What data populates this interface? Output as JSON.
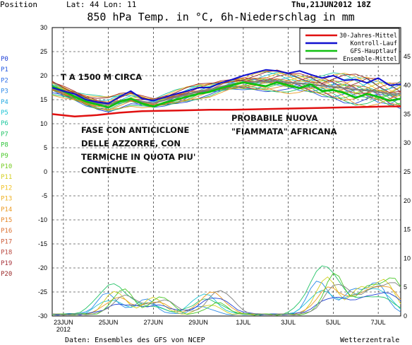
{
  "header": {
    "position_label": "Position",
    "lat_lon": "Lat: 44 Lon: 11",
    "run": "Thu,21JUN2012 18Z",
    "title": "850 hPa Temp. in °C, 6h-Niederschlag in mm"
  },
  "footer": {
    "source": "Daten: Ensembles des GFS von NCEP",
    "brand": "Wetterzentrale"
  },
  "members": [
    "P0",
    "P1",
    "P2",
    "P3",
    "P4",
    "P5",
    "P6",
    "P7",
    "P8",
    "P9",
    "P10",
    "P11",
    "P12",
    "P13",
    "P14",
    "P15",
    "P16",
    "P17",
    "P18",
    "P19",
    "P20"
  ],
  "member_colors": [
    "#1e3fd6",
    "#2458e0",
    "#2d6ee8",
    "#2e8be8",
    "#23a9e0",
    "#1fc4d4",
    "#1ec79e",
    "#25c468",
    "#2fc43a",
    "#4ac82a",
    "#77cc22",
    "#d4cf1f",
    "#f0c020",
    "#eeb020",
    "#eb9a22",
    "#e58526",
    "#dc7030",
    "#cc5a38",
    "#b8443c",
    "#a63038",
    "#982424"
  ],
  "annotations": {
    "t1500": "T A 1500 M CIRCA",
    "anticyclone": [
      "FASE CON ANTICICLONE",
      "DELLE AZZORRE, CON",
      "TERMICHE IN QUOTA PIU'",
      "CONTENUTE"
    ],
    "heat": [
      "PROBABILE NUOVA",
      "\"FIAMMATA\" AFRICANA"
    ]
  },
  "colors": {
    "climate": "#e01010",
    "control": "#1010d0",
    "main": "#10c010",
    "mean": "#808080"
  },
  "chart_data": {
    "type": "line",
    "title": "850 hPa Temp. in °C, 6h-Niederschlag in mm",
    "x_labels": [
      "23JUN",
      "25JUN",
      "27JUN",
      "29JUN",
      "1JUL",
      "3JUL",
      "5JUL",
      "7JUL"
    ],
    "x_sublabel": "2012",
    "x_range_days": [
      22.5,
      38.0
    ],
    "y_left_range": [
      -30,
      30
    ],
    "y_left_ticks": [
      30,
      25,
      20,
      15,
      10,
      5,
      0,
      -5,
      -10,
      -15,
      -20,
      -25,
      -30
    ],
    "y_right_label_ticks": [
      45,
      40,
      35,
      30,
      25,
      20,
      15,
      10,
      5,
      0
    ],
    "legend": {
      "position": "top-right",
      "entries": [
        {
          "name": "30-Jahres-Mittel",
          "color": "#e01010"
        },
        {
          "name": "Kontroll-Lauf",
          "color": "#1010d0"
        },
        {
          "name": "GFS-Hauptlauf",
          "color": "#10c010"
        },
        {
          "name": "Ensemble-Mittel",
          "color": "#808080"
        }
      ]
    },
    "grid": "dashed",
    "series": [
      {
        "name": "30-Jahres-Mittel",
        "day": [
          22.5,
          23.5,
          24.5,
          25.5,
          26.5,
          27.5,
          28.5,
          29.5,
          30.5,
          31.5,
          32.5,
          33.5,
          34.5,
          35.5,
          36.5,
          37.5,
          38.0
        ],
        "temp": [
          12.0,
          11.5,
          11.8,
          12.3,
          12.6,
          12.7,
          12.8,
          12.9,
          12.9,
          13.0,
          13.1,
          13.2,
          13.3,
          13.4,
          13.5,
          13.6,
          13.6
        ]
      },
      {
        "name": "Kontroll-Lauf",
        "day": [
          22.5,
          23.0,
          23.5,
          24.0,
          24.5,
          25.0,
          25.5,
          26.0,
          26.5,
          27.0,
          27.5,
          28.0,
          28.5,
          29.0,
          29.5,
          30.0,
          30.5,
          31.0,
          31.5,
          32.0,
          32.5,
          33.0,
          33.5,
          34.0,
          34.5,
          35.0,
          35.5,
          36.0,
          36.5,
          37.0,
          37.5,
          38.0
        ],
        "temp": [
          17.5,
          16.8,
          16.2,
          15.0,
          14.5,
          14.2,
          15.6,
          16.8,
          15.2,
          14.8,
          15.5,
          16.2,
          16.8,
          17.5,
          17.5,
          18.5,
          19.2,
          20.0,
          20.6,
          21.2,
          21.0,
          20.5,
          21.0,
          20.2,
          19.5,
          20.0,
          19.0,
          19.2,
          18.5,
          19.5,
          18.0,
          18.2
        ]
      },
      {
        "name": "GFS-Hauptlauf",
        "day": [
          22.5,
          23.0,
          23.5,
          24.0,
          24.5,
          25.0,
          25.5,
          26.0,
          26.5,
          27.0,
          27.5,
          28.0,
          28.5,
          29.0,
          29.5,
          30.0,
          30.5,
          31.0,
          31.5,
          32.0,
          32.5,
          33.0,
          33.5,
          34.0,
          34.5,
          35.0,
          35.5,
          36.0,
          36.5,
          37.0,
          37.5,
          38.0
        ],
        "temp": [
          17.8,
          16.8,
          15.6,
          14.6,
          14.0,
          13.4,
          14.6,
          15.2,
          14.2,
          13.6,
          14.4,
          15.0,
          15.6,
          16.2,
          16.6,
          17.4,
          18.0,
          18.6,
          18.2,
          17.8,
          18.6,
          18.0,
          17.4,
          18.2,
          16.8,
          17.0,
          16.4,
          15.4,
          16.2,
          15.6,
          14.8,
          15.2
        ]
      },
      {
        "name": "Ensemble-Mittel",
        "day": [
          22.5,
          23.0,
          23.5,
          24.0,
          24.5,
          25.0,
          25.5,
          26.0,
          26.5,
          27.0,
          27.5,
          28.0,
          28.5,
          29.0,
          29.5,
          30.0,
          30.5,
          31.0,
          31.5,
          32.0,
          32.5,
          33.0,
          33.5,
          34.0,
          34.5,
          35.0,
          35.5,
          36.0,
          36.5,
          37.0,
          37.5,
          38.0
        ],
        "temp": [
          17.5,
          16.6,
          15.8,
          14.9,
          14.3,
          14.0,
          14.7,
          15.2,
          14.6,
          14.3,
          14.9,
          15.5,
          16.1,
          16.7,
          17.1,
          17.7,
          18.2,
          18.5,
          18.7,
          18.8,
          18.9,
          18.6,
          18.4,
          18.2,
          17.9,
          17.7,
          17.4,
          17.1,
          16.9,
          16.6,
          16.2,
          16.2
        ]
      }
    ],
    "precipitation_peaks_mm": [
      {
        "day": 25.3,
        "mm": 5
      },
      {
        "day": 27.0,
        "mm": 3
      },
      {
        "day": 29.5,
        "mm": 4
      },
      {
        "day": 34.7,
        "mm": 8
      },
      {
        "day": 36.2,
        "mm": 5
      },
      {
        "day": 37.3,
        "mm": 6
      }
    ]
  }
}
